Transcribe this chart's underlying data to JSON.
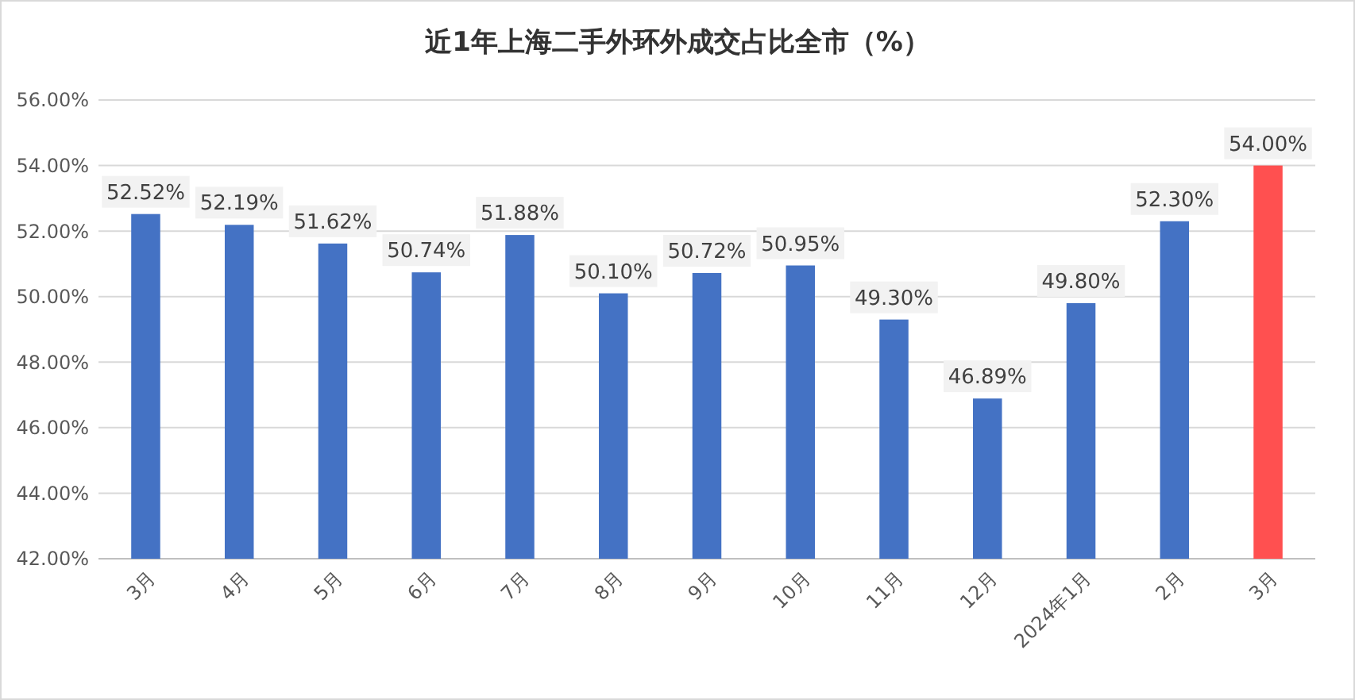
{
  "chart_data": {
    "type": "bar",
    "title": "近1年上海二手外环外成交占比全市（%）",
    "categories": [
      "3月",
      "4月",
      "5月",
      "6月",
      "7月",
      "8月",
      "9月",
      "10月",
      "11月",
      "12月",
      "2024年1月",
      "2月",
      "3月"
    ],
    "values": [
      52.52,
      52.19,
      51.62,
      50.74,
      51.88,
      50.1,
      50.72,
      50.95,
      49.3,
      46.89,
      49.8,
      52.3,
      54.0
    ],
    "colors": [
      "#4472c4",
      "#4472c4",
      "#4472c4",
      "#4472c4",
      "#4472c4",
      "#4472c4",
      "#4472c4",
      "#4472c4",
      "#4472c4",
      "#4472c4",
      "#4472c4",
      "#4472c4",
      "#ff5050"
    ],
    "value_labels": [
      "52.52%",
      "52.19%",
      "51.62%",
      "50.74%",
      "51.88%",
      "50.10%",
      "50.72%",
      "50.95%",
      "49.30%",
      "46.89%",
      "49.80%",
      "52.30%",
      "54.00%"
    ],
    "ylim": [
      42,
      56
    ],
    "yticks": [
      {
        "value": 42,
        "label": "42.00%"
      },
      {
        "value": 44,
        "label": "44.00%"
      },
      {
        "value": 46,
        "label": "46.00%"
      },
      {
        "value": 48,
        "label": "48.00%"
      },
      {
        "value": 50,
        "label": "50.00%"
      },
      {
        "value": 52,
        "label": "52.00%"
      },
      {
        "value": 54,
        "label": "54.00%"
      },
      {
        "value": 56,
        "label": "56.00%"
      }
    ],
    "grid": "y"
  }
}
